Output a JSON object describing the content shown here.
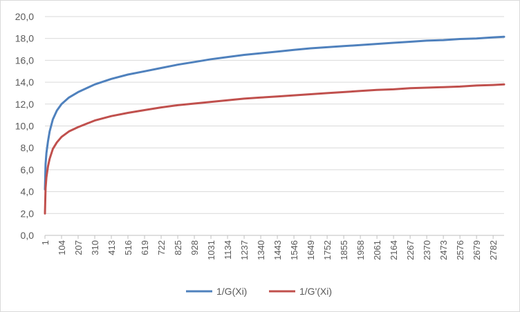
{
  "chart_data": {
    "type": "line",
    "x_range": [
      1,
      2850
    ],
    "ylim": [
      0,
      20
    ],
    "y_ticks": [
      "0,0",
      "2,0",
      "4,0",
      "6,0",
      "8,0",
      "10,0",
      "12,0",
      "14,0",
      "16,0",
      "18,0",
      "20,0"
    ],
    "x_tick_labels": [
      "1",
      "104",
      "207",
      "310",
      "413",
      "516",
      "619",
      "722",
      "825",
      "928",
      "1031",
      "1134",
      "1237",
      "1340",
      "1443",
      "1546",
      "1649",
      "1752",
      "1855",
      "1958",
      "2061",
      "2164",
      "2267",
      "2370",
      "2473",
      "2576",
      "2679",
      "2782"
    ],
    "grid": true,
    "legend_position": "bottom",
    "series": [
      {
        "name": "1/G(Xi)",
        "color": "#4f81bd",
        "points": [
          [
            1,
            4.2
          ],
          [
            5,
            6.5
          ],
          [
            10,
            7.5
          ],
          [
            20,
            8.6
          ],
          [
            30,
            9.5
          ],
          [
            50,
            10.6
          ],
          [
            75,
            11.4
          ],
          [
            104,
            12.0
          ],
          [
            150,
            12.6
          ],
          [
            207,
            13.1
          ],
          [
            310,
            13.8
          ],
          [
            413,
            14.3
          ],
          [
            516,
            14.7
          ],
          [
            619,
            15.0
          ],
          [
            722,
            15.3
          ],
          [
            825,
            15.6
          ],
          [
            928,
            15.85
          ],
          [
            1031,
            16.1
          ],
          [
            1134,
            16.3
          ],
          [
            1237,
            16.5
          ],
          [
            1340,
            16.65
          ],
          [
            1443,
            16.8
          ],
          [
            1546,
            16.95
          ],
          [
            1649,
            17.1
          ],
          [
            1752,
            17.2
          ],
          [
            1855,
            17.3
          ],
          [
            1958,
            17.4
          ],
          [
            2061,
            17.5
          ],
          [
            2164,
            17.6
          ],
          [
            2267,
            17.7
          ],
          [
            2370,
            17.8
          ],
          [
            2473,
            17.85
          ],
          [
            2576,
            17.95
          ],
          [
            2679,
            18.0
          ],
          [
            2782,
            18.1
          ],
          [
            2850,
            18.15
          ]
        ]
      },
      {
        "name": "1/G'(Xi)",
        "color": "#c0504d",
        "points": [
          [
            1,
            2.0
          ],
          [
            5,
            4.3
          ],
          [
            10,
            5.3
          ],
          [
            20,
            6.3
          ],
          [
            30,
            7.0
          ],
          [
            50,
            7.9
          ],
          [
            75,
            8.5
          ],
          [
            104,
            9.0
          ],
          [
            150,
            9.5
          ],
          [
            207,
            9.9
          ],
          [
            310,
            10.5
          ],
          [
            413,
            10.9
          ],
          [
            516,
            11.2
          ],
          [
            619,
            11.45
          ],
          [
            722,
            11.7
          ],
          [
            825,
            11.9
          ],
          [
            928,
            12.05
          ],
          [
            1031,
            12.2
          ],
          [
            1134,
            12.35
          ],
          [
            1237,
            12.5
          ],
          [
            1340,
            12.6
          ],
          [
            1443,
            12.7
          ],
          [
            1546,
            12.8
          ],
          [
            1649,
            12.9
          ],
          [
            1752,
            13.0
          ],
          [
            1855,
            13.1
          ],
          [
            1958,
            13.2
          ],
          [
            2061,
            13.3
          ],
          [
            2164,
            13.35
          ],
          [
            2267,
            13.45
          ],
          [
            2370,
            13.5
          ],
          [
            2473,
            13.55
          ],
          [
            2576,
            13.6
          ],
          [
            2679,
            13.7
          ],
          [
            2782,
            13.75
          ],
          [
            2850,
            13.8
          ]
        ]
      }
    ]
  }
}
